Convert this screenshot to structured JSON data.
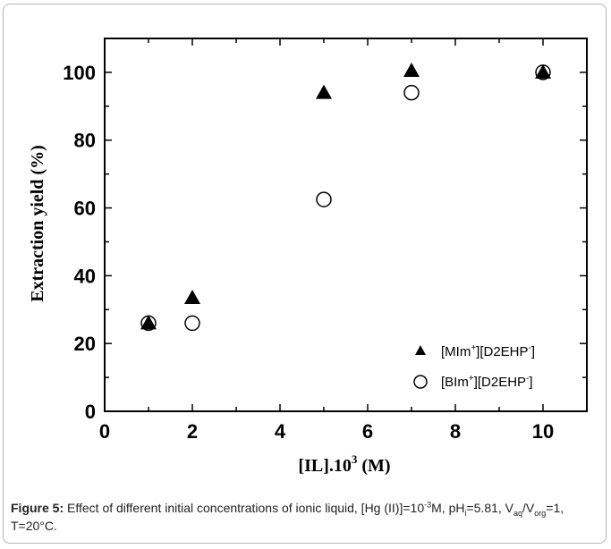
{
  "chart_data": {
    "type": "scatter",
    "xlim": [
      0,
      11
    ],
    "ylim": [
      0,
      110
    ],
    "x_ticks": [
      0,
      2,
      4,
      6,
      8,
      10
    ],
    "y_ticks": [
      0,
      20,
      40,
      60,
      80,
      100
    ],
    "xlabel": {
      "main": "[IL].10",
      "sup": "3",
      "tail": " (M)"
    },
    "ylabel": "Extraction yield (%)",
    "grid": false,
    "legend_position": "bottom-right",
    "series": [
      {
        "name": {
          "a": "[MIm",
          "a_sup": "+",
          "b": "][D2EHP",
          "b_sup": "-",
          "c": "]"
        },
        "marker": "filled-triangle",
        "color": "#000000",
        "points": [
          [
            1,
            26
          ],
          [
            2,
            33.5
          ],
          [
            5,
            94
          ],
          [
            7,
            100.5
          ],
          [
            10,
            100
          ]
        ]
      },
      {
        "name": {
          "a": "[BIm",
          "a_sup": "+",
          "b": "][D2EHP",
          "b_sup": "-",
          "c": "]"
        },
        "marker": "open-circle",
        "color": "#000000",
        "points": [
          [
            1,
            26
          ],
          [
            2,
            26
          ],
          [
            5,
            62.5
          ],
          [
            7,
            94
          ],
          [
            10,
            100
          ]
        ]
      }
    ]
  },
  "caption": {
    "label": "Figure 5:",
    "t1": " Effect of different initial concentrations of ionic liquid, [Hg (II)]=10",
    "sup1": "-3",
    "t2": "M, pH",
    "sub_i": "i",
    "t3": "=5.81, V",
    "sub_aq": "aq",
    "t4": "/V",
    "sub_org": "org",
    "t5": "=1, T=20°C."
  }
}
